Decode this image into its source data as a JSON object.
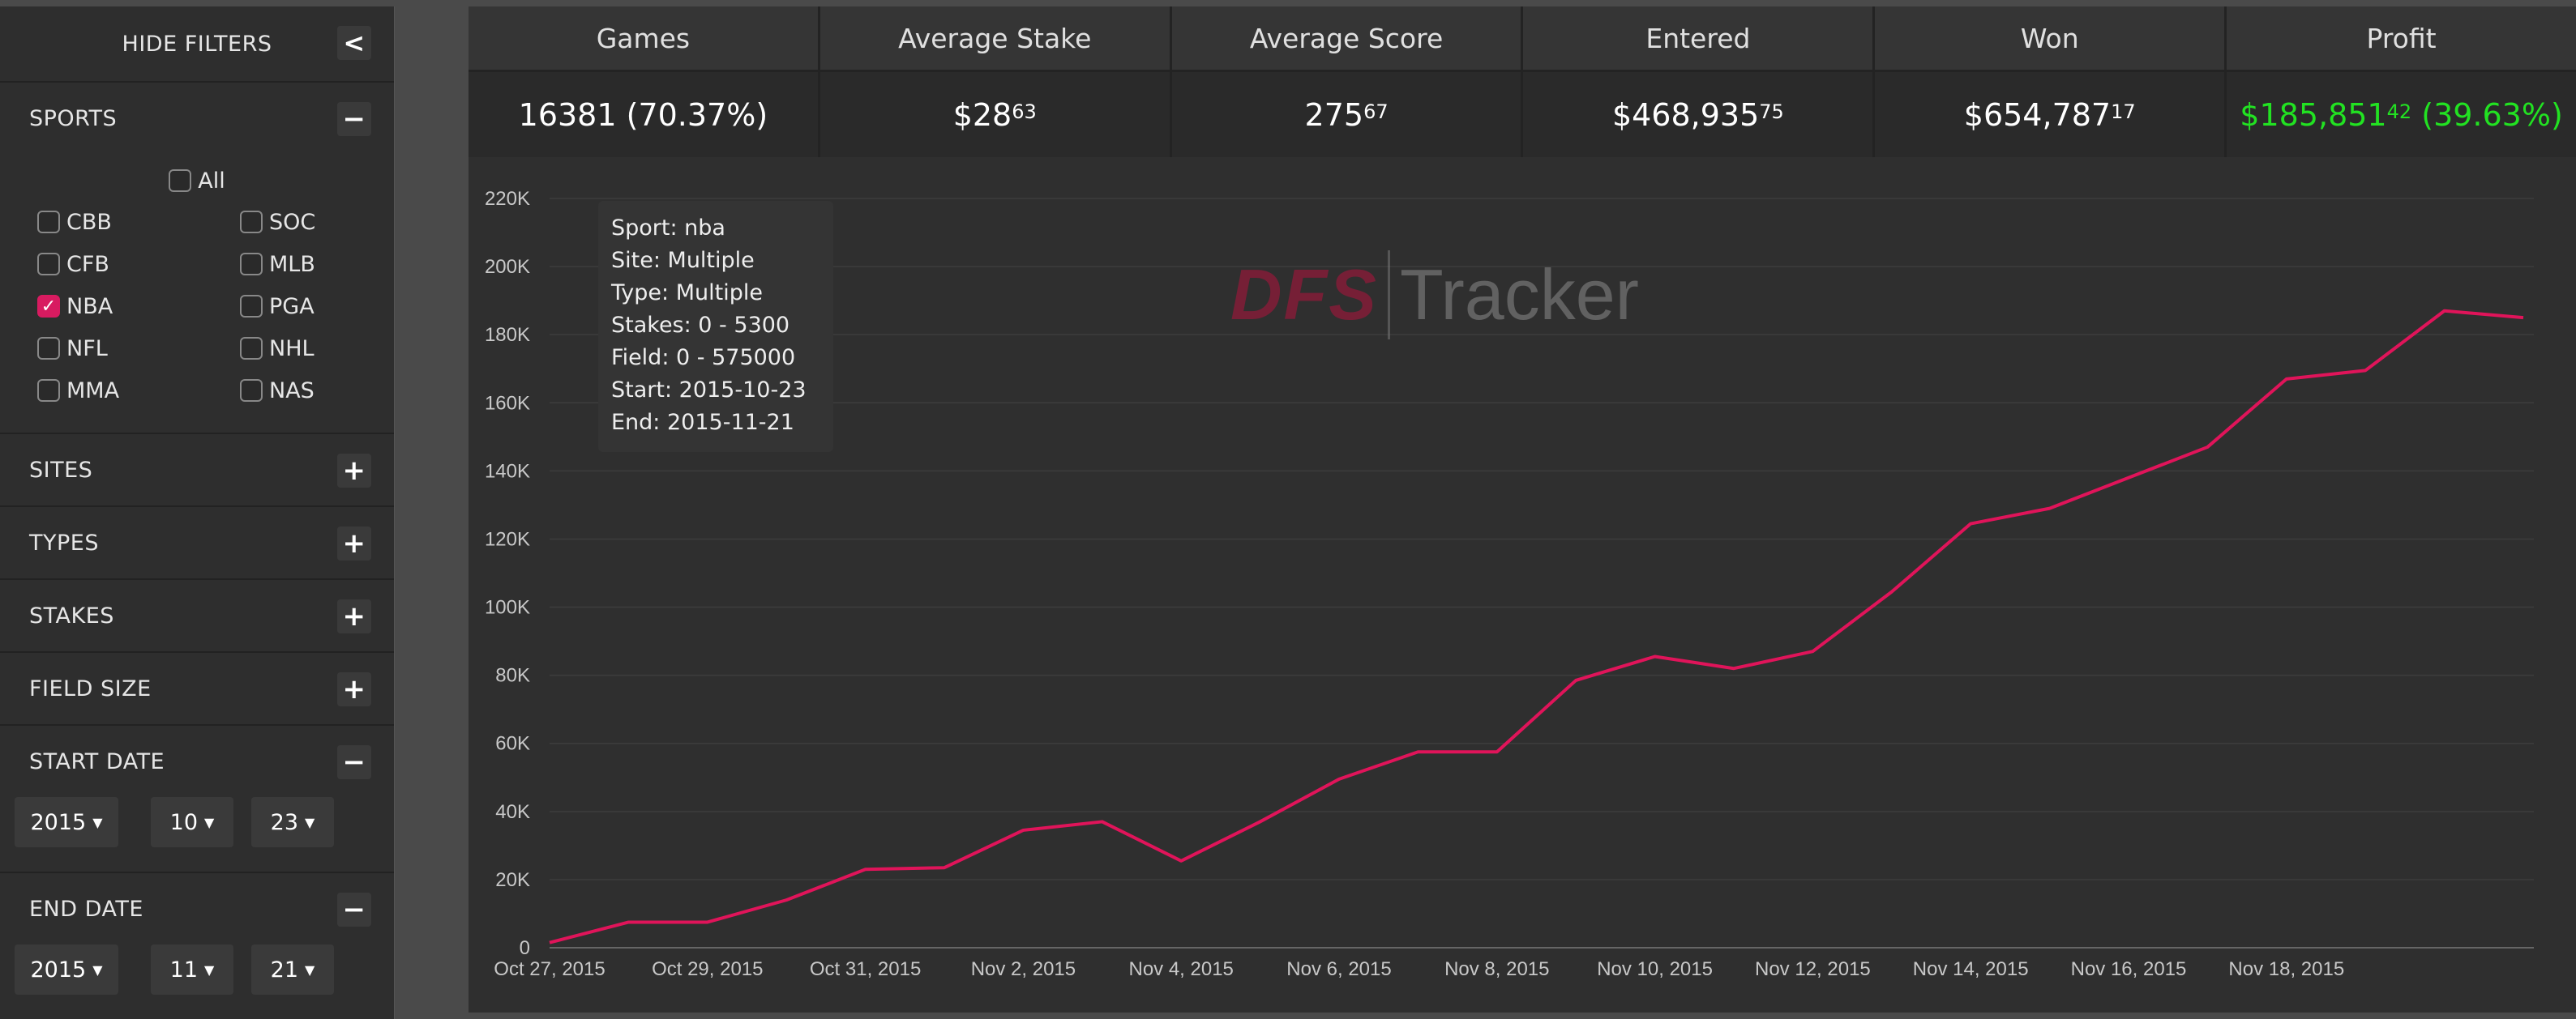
{
  "sidebar": {
    "header_label": "HIDE FILTERS",
    "collapse_symbol": "<",
    "sports": {
      "label": "SPORTS",
      "toggle": "−",
      "all_label": "All",
      "all_checked": false,
      "items": [
        {
          "label": "CBB",
          "checked": false
        },
        {
          "label": "SOC",
          "checked": false
        },
        {
          "label": "CFB",
          "checked": false
        },
        {
          "label": "MLB",
          "checked": false
        },
        {
          "label": "NBA",
          "checked": true
        },
        {
          "label": "PGA",
          "checked": false
        },
        {
          "label": "NFL",
          "checked": false
        },
        {
          "label": "NHL",
          "checked": false
        },
        {
          "label": "MMA",
          "checked": false
        },
        {
          "label": "NAS",
          "checked": false
        }
      ]
    },
    "sites": {
      "label": "SITES",
      "toggle": "+"
    },
    "types": {
      "label": "TYPES",
      "toggle": "+"
    },
    "stakes": {
      "label": "STAKES",
      "toggle": "+"
    },
    "field_size": {
      "label": "FIELD SIZE",
      "toggle": "+"
    },
    "start_date": {
      "label": "START DATE",
      "toggle": "−",
      "year": "2015",
      "month": "10",
      "day": "23"
    },
    "end_date": {
      "label": "END DATE",
      "toggle": "−",
      "year": "2015",
      "month": "11",
      "day": "21"
    }
  },
  "stats": {
    "games": {
      "label": "Games",
      "value": "16381 (70.37%)"
    },
    "average_stake": {
      "label": "Average Stake",
      "main": "$28",
      "cents": "63"
    },
    "average_score": {
      "label": "Average Score",
      "main": "275",
      "cents": "67"
    },
    "entered": {
      "label": "Entered",
      "main": "$468,935",
      "cents": "75"
    },
    "won": {
      "label": "Won",
      "main": "$654,787",
      "cents": "17"
    },
    "profit": {
      "label": "Profit",
      "main": "$185,851",
      "cents": "42",
      "suffix": " (39.63%)",
      "color": "#22e222"
    }
  },
  "tooltip": {
    "lines": [
      "Sport: nba",
      "Site: Multiple",
      "Type: Multiple",
      "Stakes: 0 - 5300",
      "Field: 0 - 575000",
      "Start: 2015-10-23",
      "End: 2015-11-21"
    ]
  },
  "watermark": {
    "part1": "DFS",
    "part2": "Tracker"
  },
  "chart_data": {
    "type": "line",
    "line_color": "#e0145a",
    "grid": true,
    "ylim": [
      0,
      220000
    ],
    "y_ticks": [
      0,
      20000,
      40000,
      60000,
      80000,
      100000,
      120000,
      140000,
      160000,
      180000,
      200000,
      220000
    ],
    "y_tick_labels": [
      "0",
      "20K",
      "40K",
      "60K",
      "80K",
      "100K",
      "120K",
      "140K",
      "160K",
      "180K",
      "200K",
      "220K"
    ],
    "x_tick_labels": [
      "Oct 27, 2015",
      "Oct 29, 2015",
      "Oct 31, 2015",
      "Nov 2, 2015",
      "Nov 4, 2015",
      "Nov 6, 2015",
      "Nov 8, 2015",
      "Nov 10, 2015",
      "Nov 12, 2015",
      "Nov 14, 2015",
      "Nov 16, 2015",
      "Nov 18, 2015"
    ],
    "x": [
      "2015-10-27",
      "2015-10-28",
      "2015-10-29",
      "2015-10-30",
      "2015-10-31",
      "2015-11-01",
      "2015-11-02",
      "2015-11-03",
      "2015-11-04",
      "2015-11-05",
      "2015-11-06",
      "2015-11-07",
      "2015-11-08",
      "2015-11-09",
      "2015-11-10",
      "2015-11-11",
      "2015-11-12",
      "2015-11-13",
      "2015-11-14",
      "2015-11-15",
      "2015-11-16",
      "2015-11-17",
      "2015-11-18",
      "2015-11-19",
      "2015-11-20",
      "2015-11-21"
    ],
    "series": [
      {
        "values": [
          1500,
          7500,
          7500,
          14000,
          23000,
          23500,
          34500,
          37000,
          25500,
          37000,
          49500,
          57500,
          57500,
          78500,
          85500,
          82000,
          87000,
          104500,
          124500,
          129000,
          138000,
          147000,
          167000,
          169500,
          187000,
          185000
        ]
      }
    ]
  }
}
